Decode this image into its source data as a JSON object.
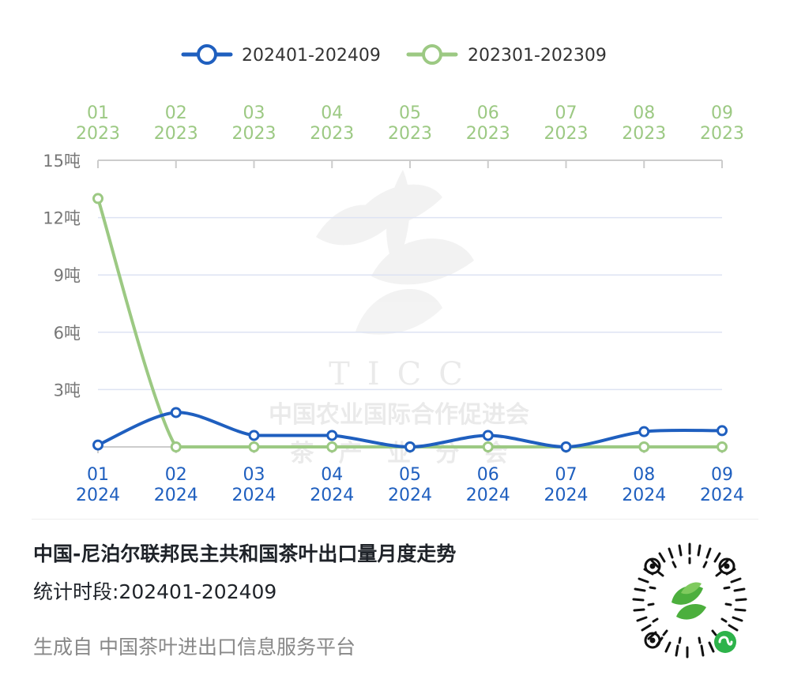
{
  "chart_data": {
    "type": "line",
    "legend_position": "top-center",
    "series": [
      {
        "name": "202401-202409",
        "color": "#1f5fbf",
        "axis": "bottom",
        "x_labels": [
          [
            "01",
            "2024"
          ],
          [
            "02",
            "2024"
          ],
          [
            "03",
            "2024"
          ],
          [
            "04",
            "2024"
          ],
          [
            "05",
            "2024"
          ],
          [
            "06",
            "2024"
          ],
          [
            "07",
            "2024"
          ],
          [
            "08",
            "2024"
          ],
          [
            "09",
            "2024"
          ]
        ],
        "values": [
          0.1,
          1.8,
          0.6,
          0.6,
          0.0,
          0.6,
          0.0,
          0.8,
          0.85
        ]
      },
      {
        "name": "202301-202309",
        "color": "#9cc983",
        "axis": "top",
        "x_labels": [
          [
            "01",
            "2023"
          ],
          [
            "02",
            "2023"
          ],
          [
            "03",
            "2023"
          ],
          [
            "04",
            "2023"
          ],
          [
            "05",
            "2023"
          ],
          [
            "06",
            "2023"
          ],
          [
            "07",
            "2023"
          ],
          [
            "08",
            "2023"
          ],
          [
            "09",
            "2023"
          ]
        ],
        "values": [
          13.0,
          0,
          0,
          0,
          0,
          0,
          0,
          0,
          0
        ]
      }
    ],
    "y_ticks": [
      "15吨",
      "12吨",
      "9吨",
      "6吨",
      "3吨"
    ],
    "ylim": [
      0,
      15
    ],
    "grid": true
  },
  "footer": {
    "title": "中国-尼泊尔联邦民主共和国茶叶出口量月度走势",
    "period": "统计时段:202401-202409",
    "source": "生成自 中国茶叶进出口信息服务平台"
  },
  "watermark": {
    "brand": "TICC",
    "org_line1": "中国农业国际合作促进会",
    "org_line2": "茶   产   业   分   会"
  },
  "icons": {
    "qr": "mini-program-qr-icon",
    "watermark": "tea-leaf-logo-icon"
  }
}
